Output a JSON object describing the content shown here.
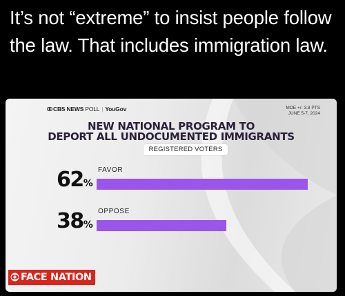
{
  "post": {
    "text": "It’s not “extreme” to insist people follow the law. That includes immigration law."
  },
  "graphic": {
    "source_brand": "CBS NEWS",
    "source_poll": "POLL",
    "source_partner": "YouGov",
    "moe_line1": "MOE +/- 3.8 PTS",
    "moe_line2": "JUNE 5-7, 2024",
    "title_line1": "NEW NATIONAL PROGRAM TO",
    "title_line2": "DEPORT ALL UNDOCUMENTED IMMIGRANTS",
    "subgroup": "REGISTERED VOTERS",
    "logo_text": "FACE NATION",
    "bar_color": "#9b55ea",
    "logo_color": "#d9251c"
  },
  "chart_data": {
    "type": "bar",
    "categories": [
      "FAVOR",
      "OPPOSE"
    ],
    "values": [
      62,
      38
    ],
    "value_suffix": "%",
    "ylim": [
      0,
      62
    ]
  }
}
